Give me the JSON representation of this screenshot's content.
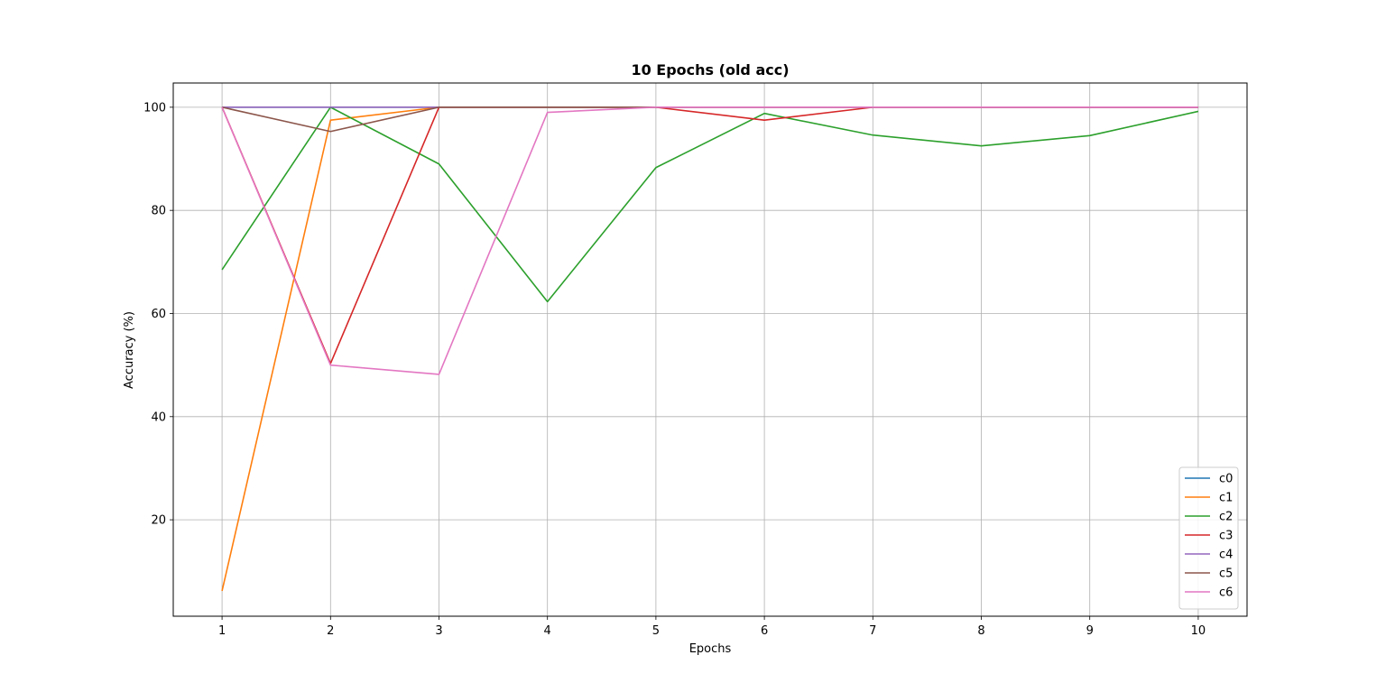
{
  "chart_data": {
    "type": "line",
    "title": "10 Epochs (old acc)",
    "xlabel": "Epochs",
    "ylabel": "Accuracy (%)",
    "x": [
      1,
      2,
      3,
      4,
      5,
      6,
      7,
      8,
      9,
      10
    ],
    "x_ticks": [
      "1",
      "2",
      "3",
      "4",
      "5",
      "6",
      "7",
      "8",
      "9",
      "10"
    ],
    "y_ticks": [
      20,
      40,
      60,
      80,
      100
    ],
    "xlim": [
      0.55,
      10.45
    ],
    "ylim": [
      1.3,
      104.7
    ],
    "grid": true,
    "legend_position": "lower-right",
    "series": [
      {
        "name": "c0",
        "color": "#1f77b4",
        "values": [
          100,
          100,
          100,
          100,
          100,
          100,
          100,
          100,
          100,
          100
        ]
      },
      {
        "name": "c1",
        "color": "#ff7f0e",
        "values": [
          6.2,
          97.5,
          100,
          100,
          100,
          100,
          100,
          100,
          100,
          100
        ]
      },
      {
        "name": "c2",
        "color": "#2ca02c",
        "values": [
          68.5,
          100,
          89,
          62.3,
          88.3,
          98.8,
          94.6,
          92.5,
          94.5,
          99.2
        ]
      },
      {
        "name": "c3",
        "color": "#d62728",
        "values": [
          100,
          50.3,
          100,
          100,
          100,
          97.5,
          100,
          100,
          100,
          100
        ]
      },
      {
        "name": "c4",
        "color": "#9467bd",
        "values": [
          100,
          100,
          100,
          100,
          100,
          100,
          100,
          100,
          100,
          100
        ]
      },
      {
        "name": "c5",
        "color": "#8c564b",
        "values": [
          100,
          95.3,
          100,
          100,
          100,
          100,
          100,
          100,
          100,
          100
        ]
      },
      {
        "name": "c6",
        "color": "#e377c2",
        "values": [
          100,
          50,
          48.2,
          99,
          100,
          100,
          100,
          100,
          100,
          100
        ]
      }
    ]
  }
}
